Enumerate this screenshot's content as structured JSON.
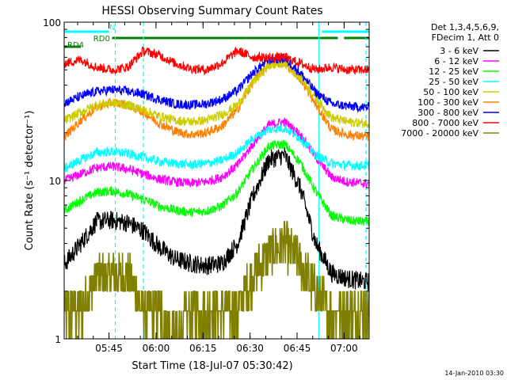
{
  "chart_data": {
    "type": "line",
    "title": "HESSI Observing Summary Count Rates",
    "xlabel": "Start Time (18-Jul-07 05:30:42)",
    "ylabel": "Count Rate (s⁻¹ detector⁻¹)",
    "y_scale": "log",
    "ylim": [
      1,
      100
    ],
    "xlim": [
      "05:30:42",
      "07:08:00"
    ],
    "x_ticks": [
      "05:45",
      "06:00",
      "06:15",
      "06:30",
      "06:45",
      "07:00"
    ],
    "y_ticks": [
      "1",
      "10",
      "100"
    ],
    "detector_info": [
      "Det 1,3,4,5,6,9,",
      "FDecim 1, Att 0"
    ],
    "flags": [
      {
        "name": "N",
        "color": "#00ffff",
        "segments": [
          [
            "05:30:42",
            "05:45"
          ],
          [
            "06:53",
            "07:08"
          ]
        ]
      },
      {
        "name": "RD0",
        "color": "#008000",
        "segments": [
          [
            "05:46",
            "06:29"
          ],
          [
            "06:29",
            "06:58"
          ],
          [
            "07:00",
            "07:08"
          ]
        ]
      },
      {
        "name": "RD4",
        "color": "#008000",
        "segments": [
          [
            "05:30:42",
            "05:36"
          ]
        ]
      }
    ],
    "vertical_markers": [
      {
        "time": "05:30:42",
        "color": "#00ffff",
        "style": "solid"
      },
      {
        "time": "05:47",
        "color": "#00ffff",
        "style": "dashed"
      },
      {
        "time": "05:56",
        "color": "#00ffff",
        "style": "dashed"
      },
      {
        "time": "06:52",
        "color": "#00ffff",
        "style": "solid"
      },
      {
        "time": "07:07",
        "color": "#00ffff",
        "style": "dashed"
      }
    ],
    "series": [
      {
        "name": "3 - 6 keV",
        "color": "#000000",
        "x": [
          "05:31",
          "05:36",
          "05:41",
          "05:46",
          "05:51",
          "05:56",
          "06:01",
          "06:06",
          "06:11",
          "06:16",
          "06:21",
          "06:26",
          "06:31",
          "06:36",
          "06:41",
          "06:46",
          "06:51",
          "06:56",
          "07:01",
          "07:06"
        ],
        "y": [
          3.0,
          4.0,
          5.5,
          5.6,
          5.4,
          4.8,
          3.8,
          3.2,
          3.0,
          2.9,
          3.0,
          4.0,
          8.0,
          13.5,
          14.5,
          9.0,
          4.0,
          2.6,
          2.4,
          2.3
        ]
      },
      {
        "name": "6 - 12 keV",
        "color": "#ff00ff",
        "x": [
          "05:31",
          "05:36",
          "05:41",
          "05:46",
          "05:51",
          "05:56",
          "06:01",
          "06:06",
          "06:11",
          "06:16",
          "06:21",
          "06:26",
          "06:31",
          "06:36",
          "06:41",
          "06:46",
          "06:51",
          "06:56",
          "07:01",
          "07:06"
        ],
        "y": [
          10.0,
          11.0,
          12.0,
          12.3,
          11.8,
          11.0,
          10.2,
          9.8,
          9.6,
          9.8,
          10.5,
          12.5,
          17.0,
          22.5,
          23.5,
          19.5,
          14.0,
          10.5,
          9.8,
          9.6
        ]
      },
      {
        "name": "12 - 25 keV",
        "color": "#00ff00",
        "x": [
          "05:31",
          "05:36",
          "05:41",
          "05:46",
          "05:51",
          "05:56",
          "06:01",
          "06:06",
          "06:11",
          "06:16",
          "06:21",
          "06:26",
          "06:31",
          "06:36",
          "06:41",
          "06:46",
          "06:51",
          "06:56",
          "07:01",
          "07:06"
        ],
        "y": [
          6.5,
          7.5,
          8.4,
          8.6,
          8.2,
          7.6,
          6.9,
          6.5,
          6.3,
          6.4,
          6.9,
          8.4,
          12.0,
          16.5,
          17.0,
          13.0,
          8.5,
          6.0,
          5.6,
          5.5
        ]
      },
      {
        "name": "25 - 50 keV",
        "color": "#00ffff",
        "x": [
          "05:31",
          "05:36",
          "05:41",
          "05:46",
          "05:51",
          "05:56",
          "06:01",
          "06:06",
          "06:11",
          "06:16",
          "06:21",
          "06:26",
          "06:31",
          "06:36",
          "06:41",
          "06:46",
          "06:51",
          "06:56",
          "07:01",
          "07:06"
        ],
        "y": [
          12.0,
          13.5,
          15.0,
          15.2,
          14.8,
          14.0,
          13.2,
          12.8,
          12.6,
          12.8,
          13.4,
          15.0,
          18.5,
          21.0,
          21.5,
          18.5,
          14.5,
          12.8,
          12.5,
          12.4
        ]
      },
      {
        "name": "50 - 100 keV",
        "color": "#cccc00",
        "x": [
          "05:31",
          "05:36",
          "05:41",
          "05:46",
          "05:51",
          "05:56",
          "06:01",
          "06:06",
          "06:11",
          "06:16",
          "06:21",
          "06:26",
          "06:31",
          "06:36",
          "06:41",
          "06:46",
          "06:51",
          "06:56",
          "07:01",
          "07:06"
        ],
        "y": [
          24.0,
          27.0,
          30.0,
          31.0,
          30.0,
          28.0,
          25.5,
          24.0,
          23.5,
          24.0,
          26.0,
          30.0,
          42.0,
          53.0,
          55.0,
          45.0,
          33.0,
          25.0,
          23.5,
          23.0
        ]
      },
      {
        "name": "100 - 300 keV",
        "color": "#ff8000",
        "x": [
          "05:31",
          "05:36",
          "05:41",
          "05:46",
          "05:51",
          "05:56",
          "06:01",
          "06:06",
          "06:11",
          "06:16",
          "06:21",
          "06:26",
          "06:31",
          "06:36",
          "06:41",
          "06:46",
          "06:51",
          "06:56",
          "07:01",
          "07:06"
        ],
        "y": [
          19.0,
          24.0,
          29.0,
          31.0,
          30.0,
          27.0,
          23.0,
          20.5,
          19.5,
          20.0,
          22.0,
          28.0,
          42.0,
          54.0,
          56.0,
          44.0,
          30.0,
          21.0,
          19.5,
          19.0
        ]
      },
      {
        "name": "300 - 800 keV",
        "color": "#0000ff",
        "x": [
          "05:31",
          "05:36",
          "05:41",
          "05:46",
          "05:51",
          "05:56",
          "06:01",
          "06:06",
          "06:11",
          "06:16",
          "06:21",
          "06:26",
          "06:31",
          "06:36",
          "06:41",
          "06:46",
          "06:51",
          "06:56",
          "07:01",
          "07:06"
        ],
        "y": [
          31.0,
          34.0,
          36.5,
          37.5,
          36.5,
          35.0,
          32.5,
          30.5,
          30.0,
          30.5,
          32.5,
          37.0,
          48.0,
          58.0,
          59.0,
          48.0,
          36.0,
          30.5,
          29.5,
          29.0
        ]
      },
      {
        "name": "800 - 7000 keV",
        "color": "#ff0000",
        "x": [
          "05:31",
          "05:36",
          "05:41",
          "05:46",
          "05:51",
          "05:56",
          "06:01",
          "06:06",
          "06:11",
          "06:16",
          "06:21",
          "06:26",
          "06:31",
          "06:36",
          "06:41",
          "06:46",
          "06:51",
          "06:56",
          "07:01",
          "07:06"
        ],
        "y": [
          55.0,
          58.0,
          52.0,
          50.0,
          52.0,
          66.0,
          62.0,
          55.0,
          51.0,
          50.0,
          55.0,
          66.0,
          60.0,
          60.0,
          60.0,
          55.0,
          50.0,
          52.0,
          50.0,
          50.0
        ]
      },
      {
        "name": "7000 - 20000 keV",
        "color": "#808000",
        "x": [
          "05:31",
          "05:36",
          "05:41",
          "05:46",
          "05:51",
          "05:56",
          "06:01",
          "06:06",
          "06:11",
          "06:16",
          "06:21",
          "06:26",
          "06:31",
          "06:36",
          "06:41",
          "06:46",
          "06:51",
          "06:56",
          "07:01",
          "07:06"
        ],
        "y": [
          1.5,
          1.5,
          2.5,
          2.5,
          2.5,
          1.5,
          1.5,
          1.0,
          1.5,
          1.5,
          1.5,
          1.5,
          2.5,
          3.5,
          4.0,
          3.0,
          2.0,
          1.5,
          1.5,
          1.5
        ]
      }
    ]
  },
  "footer_timestamp": "14-Jan-2010 03:30"
}
